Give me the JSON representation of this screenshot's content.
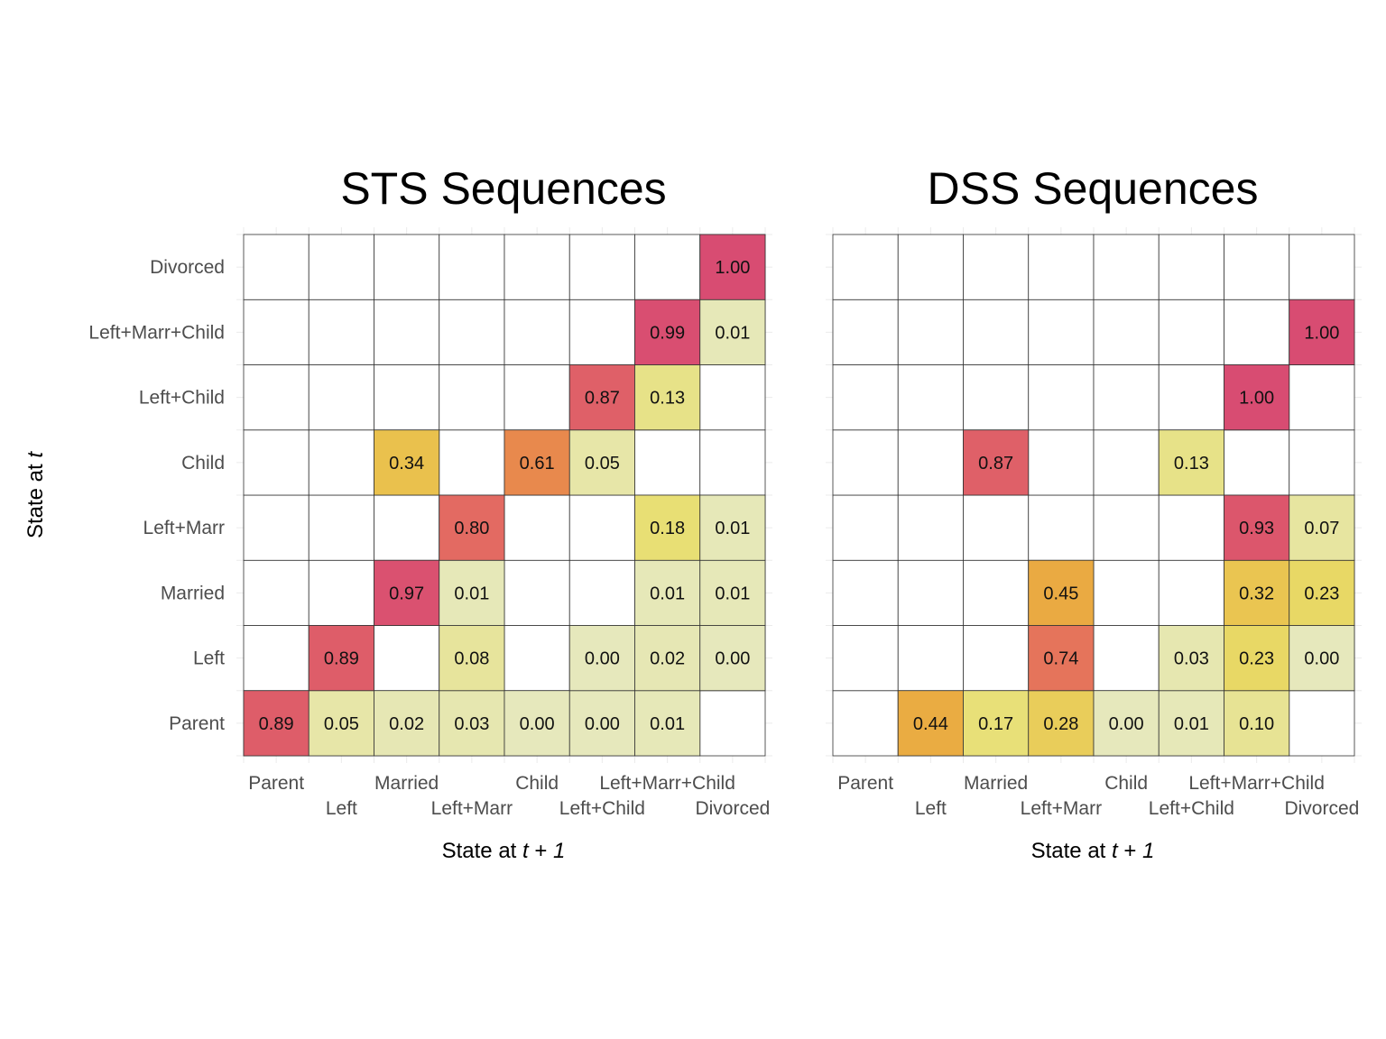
{
  "chart_data": [
    {
      "type": "heatmap",
      "title": "STS Sequences",
      "xlabel": "State at t + 1",
      "xlabel_parts": [
        "State at ",
        "t",
        " + ",
        "1"
      ],
      "ylabel": "State at t",
      "ylabel_parts": [
        "State at ",
        "t"
      ],
      "x_categories": [
        "Parent",
        "Left",
        "Married",
        "Left+Marr",
        "Child",
        "Left+Child",
        "Left+Marr+Child",
        "Divorced"
      ],
      "y_categories": [
        "Parent",
        "Left",
        "Married",
        "Left+Marr",
        "Child",
        "Left+Child",
        "Left+Marr+Child",
        "Divorced"
      ],
      "cells": [
        {
          "y": "Parent",
          "x": "Parent",
          "value": 0.89,
          "label": "0.89"
        },
        {
          "y": "Parent",
          "x": "Left",
          "value": 0.05,
          "label": "0.05"
        },
        {
          "y": "Parent",
          "x": "Married",
          "value": 0.02,
          "label": "0.02"
        },
        {
          "y": "Parent",
          "x": "Left+Marr",
          "value": 0.03,
          "label": "0.03"
        },
        {
          "y": "Parent",
          "x": "Child",
          "value": 0.0,
          "label": "0.00"
        },
        {
          "y": "Parent",
          "x": "Left+Child",
          "value": 0.0,
          "label": "0.00"
        },
        {
          "y": "Parent",
          "x": "Left+Marr+Child",
          "value": 0.01,
          "label": "0.01"
        },
        {
          "y": "Left",
          "x": "Left",
          "value": 0.89,
          "label": "0.89"
        },
        {
          "y": "Left",
          "x": "Left+Marr",
          "value": 0.08,
          "label": "0.08"
        },
        {
          "y": "Left",
          "x": "Left+Child",
          "value": 0.0,
          "label": "0.00"
        },
        {
          "y": "Left",
          "x": "Left+Marr+Child",
          "value": 0.02,
          "label": "0.02"
        },
        {
          "y": "Left",
          "x": "Divorced",
          "value": 0.0,
          "label": "0.00"
        },
        {
          "y": "Married",
          "x": "Married",
          "value": 0.97,
          "label": "0.97"
        },
        {
          "y": "Married",
          "x": "Left+Marr",
          "value": 0.01,
          "label": "0.01"
        },
        {
          "y": "Married",
          "x": "Left+Marr+Child",
          "value": 0.01,
          "label": "0.01"
        },
        {
          "y": "Married",
          "x": "Divorced",
          "value": 0.01,
          "label": "0.01"
        },
        {
          "y": "Left+Marr",
          "x": "Left+Marr",
          "value": 0.8,
          "label": "0.80"
        },
        {
          "y": "Left+Marr",
          "x": "Left+Marr+Child",
          "value": 0.18,
          "label": "0.18"
        },
        {
          "y": "Left+Marr",
          "x": "Divorced",
          "value": 0.01,
          "label": "0.01"
        },
        {
          "y": "Child",
          "x": "Married",
          "value": 0.34,
          "label": "0.34"
        },
        {
          "y": "Child",
          "x": "Child",
          "value": 0.61,
          "label": "0.61"
        },
        {
          "y": "Child",
          "x": "Left+Child",
          "value": 0.05,
          "label": "0.05"
        },
        {
          "y": "Left+Child",
          "x": "Left+Child",
          "value": 0.87,
          "label": "0.87"
        },
        {
          "y": "Left+Child",
          "x": "Left+Marr+Child",
          "value": 0.13,
          "label": "0.13"
        },
        {
          "y": "Left+Marr+Child",
          "x": "Left+Marr+Child",
          "value": 0.99,
          "label": "0.99"
        },
        {
          "y": "Left+Marr+Child",
          "x": "Divorced",
          "value": 0.01,
          "label": "0.01"
        },
        {
          "y": "Divorced",
          "x": "Divorced",
          "value": 1.0,
          "label": "1.00"
        }
      ]
    },
    {
      "type": "heatmap",
      "title": "DSS Sequences",
      "xlabel": "State at t + 1",
      "xlabel_parts": [
        "State at ",
        "t",
        " + ",
        "1"
      ],
      "ylabel": "",
      "x_categories": [
        "Parent",
        "Left",
        "Married",
        "Left+Marr",
        "Child",
        "Left+Child",
        "Left+Marr+Child",
        "Divorced"
      ],
      "y_categories": [
        "Parent",
        "Left",
        "Married",
        "Left+Marr",
        "Child",
        "Left+Child",
        "Left+Marr+Child",
        "Divorced"
      ],
      "cells": [
        {
          "y": "Parent",
          "x": "Left",
          "value": 0.44,
          "label": "0.44"
        },
        {
          "y": "Parent",
          "x": "Married",
          "value": 0.17,
          "label": "0.17"
        },
        {
          "y": "Parent",
          "x": "Left+Marr",
          "value": 0.28,
          "label": "0.28"
        },
        {
          "y": "Parent",
          "x": "Child",
          "value": 0.0,
          "label": "0.00"
        },
        {
          "y": "Parent",
          "x": "Left+Child",
          "value": 0.01,
          "label": "0.01"
        },
        {
          "y": "Parent",
          "x": "Left+Marr+Child",
          "value": 0.1,
          "label": "0.10"
        },
        {
          "y": "Left",
          "x": "Left+Marr",
          "value": 0.74,
          "label": "0.74"
        },
        {
          "y": "Left",
          "x": "Left+Child",
          "value": 0.03,
          "label": "0.03"
        },
        {
          "y": "Left",
          "x": "Left+Marr+Child",
          "value": 0.23,
          "label": "0.23"
        },
        {
          "y": "Left",
          "x": "Divorced",
          "value": 0.0,
          "label": "0.00"
        },
        {
          "y": "Married",
          "x": "Left+Marr",
          "value": 0.45,
          "label": "0.45"
        },
        {
          "y": "Married",
          "x": "Left+Marr+Child",
          "value": 0.32,
          "label": "0.32"
        },
        {
          "y": "Married",
          "x": "Divorced",
          "value": 0.23,
          "label": "0.23"
        },
        {
          "y": "Left+Marr",
          "x": "Left+Marr+Child",
          "value": 0.93,
          "label": "0.93"
        },
        {
          "y": "Left+Marr",
          "x": "Divorced",
          "value": 0.07,
          "label": "0.07"
        },
        {
          "y": "Child",
          "x": "Married",
          "value": 0.87,
          "label": "0.87"
        },
        {
          "y": "Child",
          "x": "Left+Child",
          "value": 0.13,
          "label": "0.13"
        },
        {
          "y": "Left+Child",
          "x": "Left+Marr+Child",
          "value": 1.0,
          "label": "1.00"
        },
        {
          "y": "Left+Marr+Child",
          "x": "Divorced",
          "value": 1.0,
          "label": "1.00"
        }
      ]
    }
  ],
  "color_scale": {
    "low": "#e6e8bc",
    "stops": [
      "#e6e8bc",
      "#e8de6c",
      "#ebb43f",
      "#e88b4c",
      "#e36a62",
      "#d84c72"
    ],
    "grid_line": "#333333",
    "background_grid": "#ebebeb"
  }
}
